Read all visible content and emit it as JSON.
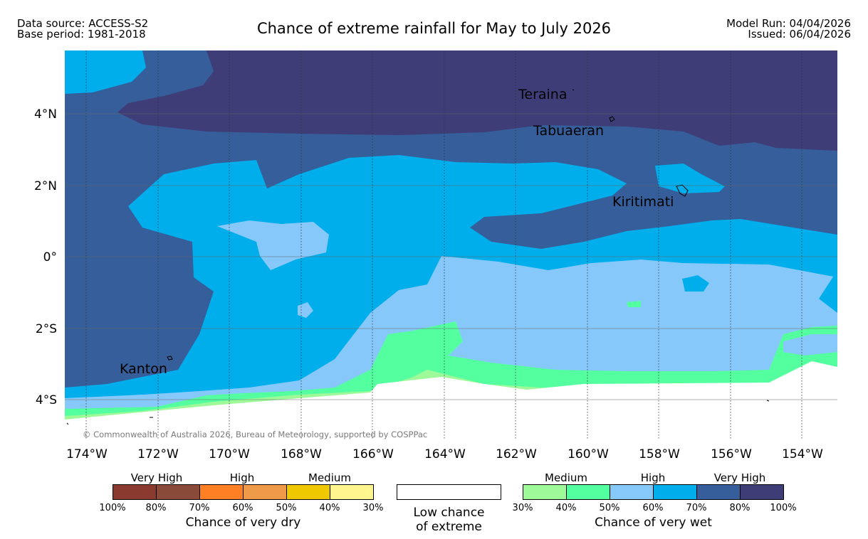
{
  "header": {
    "data_source": "Data source: ACCESS-S2",
    "base_period": "Base period: 1981-2018",
    "title": "Chance of extreme rainfall for May to July 2026",
    "model_run": "Model Run: 04/04/2026",
    "issued": "Issued: 06/04/2026"
  },
  "map": {
    "longitude_ticks": [
      "174°W",
      "172°W",
      "170°W",
      "168°W",
      "166°W",
      "164°W",
      "162°W",
      "160°W",
      "158°W",
      "156°W",
      "154°W"
    ],
    "latitude_ticks": [
      "4°N",
      "2°N",
      "0°",
      "2°S",
      "4°S"
    ],
    "places": {
      "teraina": "Teraina",
      "tabuaeran": "Tabuaeran",
      "kiritimati": "Kiritimati",
      "kanton": "Kanton"
    },
    "copyright": "© Commonwealth of Australia 2026, Bureau of Meteorology, supported by COSPPac"
  },
  "legend": {
    "dry": {
      "labels": [
        "Very High",
        "High",
        "Medium"
      ],
      "colors": [
        "#8b3a2f",
        "#8a4a3a",
        "#ff7f24",
        "#ef9a48",
        "#f0c800",
        "#fff68f"
      ],
      "percents": [
        "100%",
        "80%",
        "70%",
        "60%",
        "50%",
        "40%",
        "30%"
      ],
      "caption": "Chance of very dry"
    },
    "neutral": {
      "caption_line1": "Low chance",
      "caption_line2": "of extreme"
    },
    "wet": {
      "labels": [
        "Medium",
        "High",
        "Very High"
      ],
      "colors": [
        "#9efa98",
        "#54ff9f",
        "#87c8fa",
        "#00aeec",
        "#355e9a",
        "#3f3d78"
      ],
      "percents": [
        "30%",
        "40%",
        "50%",
        "60%",
        "70%",
        "80%",
        "100%"
      ],
      "caption": "Chance of very wet"
    }
  }
}
